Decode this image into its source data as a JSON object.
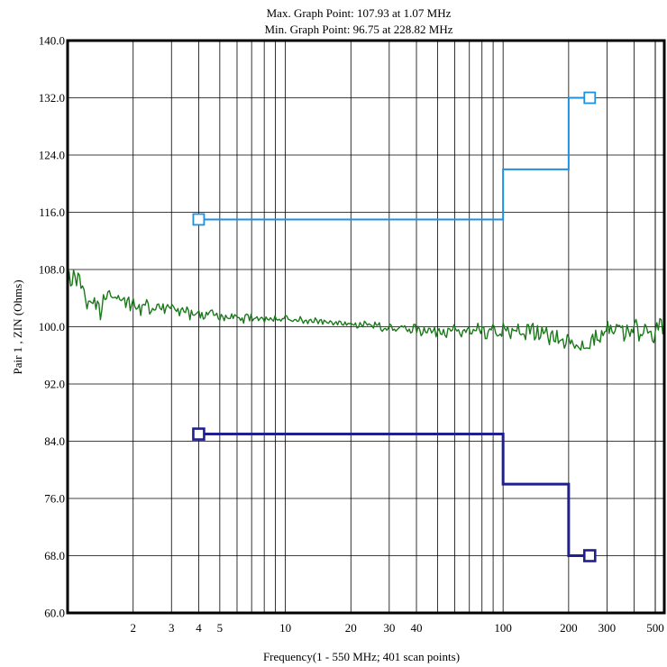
{
  "chart_data": {
    "type": "line",
    "header_lines": [
      "Max. Graph Point: 107.93 at 1.07 MHz",
      "Min. Graph Point: 96.75 at 228.82 MHz"
    ],
    "xlabel": "Frequency(1 - 550 MHz; 401 scan points)",
    "ylabel": "Pair 1 , ZIN (Ohms)",
    "x_scale": "log",
    "xlim": [
      1,
      550
    ],
    "ylim": [
      60,
      140
    ],
    "y_ticks": [
      "60.0",
      "68.0",
      "76.0",
      "84.0",
      "92.0",
      "100.0",
      "108.0",
      "116.0",
      "124.0",
      "132.0",
      "140.0"
    ],
    "x_tick_labels": [
      {
        "value": 2,
        "label": "2"
      },
      {
        "value": 3,
        "label": "3"
      },
      {
        "value": 4,
        "label": "4"
      },
      {
        "value": 5,
        "label": "5"
      },
      {
        "value": 10,
        "label": "10"
      },
      {
        "value": 20,
        "label": "20"
      },
      {
        "value": 30,
        "label": "30"
      },
      {
        "value": 40,
        "label": "40"
      },
      {
        "value": 100,
        "label": "100"
      },
      {
        "value": 200,
        "label": "200"
      },
      {
        "value": 300,
        "label": "300"
      },
      {
        "value": 500,
        "label": "500"
      }
    ],
    "grid": true,
    "colors": {
      "measurement": "#1a7a1a",
      "upper_limit": "#1e90e0",
      "lower_limit": "#1f1f8f"
    },
    "limits": {
      "upper": [
        [
          4,
          115
        ],
        [
          100,
          115
        ],
        [
          100,
          122
        ],
        [
          200,
          122
        ],
        [
          200,
          132
        ],
        [
          250,
          132
        ]
      ],
      "lower": [
        [
          4,
          85
        ],
        [
          100,
          85
        ],
        [
          100,
          78
        ],
        [
          200,
          78
        ],
        [
          200,
          68
        ],
        [
          250,
          68
        ]
      ]
    },
    "markers": {
      "upper": [
        [
          4,
          115
        ],
        [
          250,
          132
        ]
      ],
      "lower": [
        [
          4,
          85
        ],
        [
          250,
          68
        ]
      ]
    },
    "measurement": {
      "x_start": 1,
      "x_end": 550,
      "points": 401,
      "keypoints": [
        [
          1,
          105.0
        ],
        [
          1.07,
          107.93
        ],
        [
          1.2,
          104.0
        ],
        [
          1.4,
          102.5
        ],
        [
          1.6,
          104.5
        ],
        [
          2,
          103.0
        ],
        [
          3,
          102.5
        ],
        [
          4,
          101.8
        ],
        [
          6,
          101.3
        ],
        [
          10,
          101.0
        ],
        [
          20,
          100.4
        ],
        [
          40,
          99.6
        ],
        [
          60,
          99.3
        ],
        [
          100,
          99.2
        ],
        [
          150,
          99.4
        ],
        [
          228.82,
          96.75
        ],
        [
          300,
          99.3
        ],
        [
          550,
          99.8
        ]
      ],
      "ripple_amplitude": [
        [
          1,
          1.8
        ],
        [
          3,
          1.0
        ],
        [
          10,
          0.5
        ],
        [
          30,
          0.6
        ],
        [
          60,
          0.9
        ],
        [
          100,
          1.2
        ],
        [
          550,
          1.8
        ]
      ]
    }
  }
}
